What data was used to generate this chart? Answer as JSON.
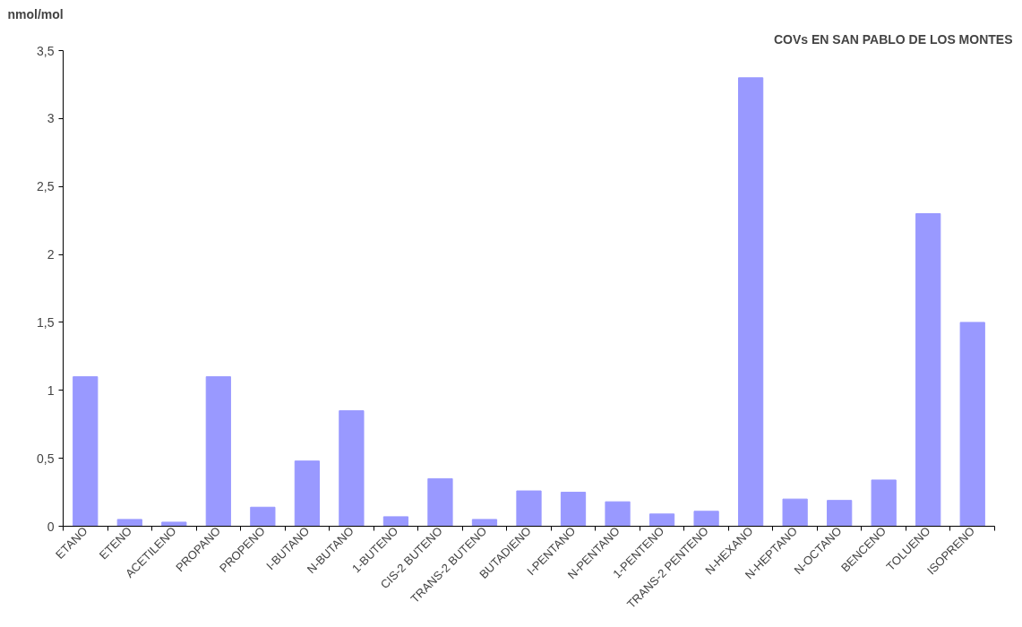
{
  "chart_data": {
    "type": "bar",
    "title": "COVs EN SAN PABLO DE LOS MONTES",
    "ylabel": "nmol/mol",
    "categories": [
      "ETANO",
      "ETENO",
      "ACETILENO",
      "PROPANO",
      "PROPENO",
      "I-BUTANO",
      "N-BUTANO",
      "1-BUTENO",
      "CIS-2 BUTENO",
      "TRANS-2 BUTENO",
      "BUTADIENO",
      "I-PENTANO",
      "N-PENTANO",
      "1-PENTENO",
      "TRANS-2 PENTENO",
      "N-HEXANO",
      "N-HEPTANO",
      "N-OCTANO",
      "BENCENO",
      "TOLUENO",
      "ISOPRENO"
    ],
    "values": [
      1.1,
      0.05,
      0.03,
      1.1,
      0.14,
      0.48,
      0.85,
      0.07,
      0.35,
      0.05,
      0.26,
      0.25,
      0.18,
      0.09,
      0.11,
      3.3,
      0.2,
      0.19,
      0.34,
      2.3,
      1.5
    ],
    "color": "#9999ff",
    "ylim": [
      0,
      3.5
    ],
    "yticks": [
      0,
      {
        "value": 0.5,
        "label": "0,5"
      },
      1,
      {
        "value": 1.5,
        "label": "1,5"
      },
      2,
      {
        "value": 2.5,
        "label": "2,5"
      },
      3,
      {
        "value": 3.5,
        "label": "3,5"
      }
    ],
    "grid": false
  }
}
